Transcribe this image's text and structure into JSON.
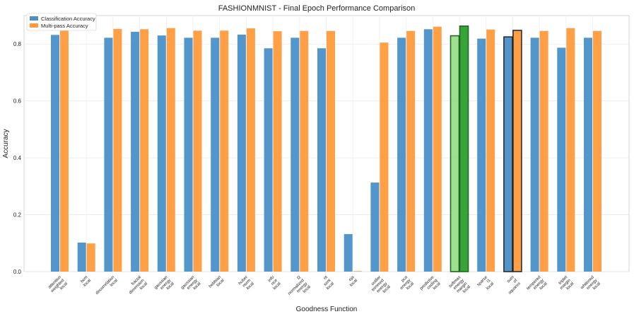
{
  "chart_data": {
    "type": "bar",
    "title": "FASHIONMNIST - Final Epoch Performance Comparison",
    "xlabel": "Goodness Function",
    "ylabel": "Accuracy",
    "ylim": [
      0,
      0.9
    ],
    "yticks": [
      0.0,
      0.2,
      0.4,
      0.6,
      0.8
    ],
    "grid": true,
    "legend_position": "top-left",
    "categories": [
      [
        "attention",
        "weighted",
        "local"
      ],
      [
        "bcm",
        "local"
      ],
      [
        "decorrelation",
        "local"
      ],
      [
        "fractal",
        "dimension",
        "local"
      ],
      [
        "gaussian",
        "energy",
        "local"
      ],
      [
        "gaussian",
        "energy",
        "local"
      ],
      [
        "hebbian",
        "local"
      ],
      [
        "huber",
        "norm",
        "local"
      ],
      [
        "info",
        "nce",
        "local"
      ],
      [
        "l2",
        "normalized",
        "energy",
        "local"
      ],
      [
        "nt",
        "xent",
        "local"
      ],
      [
        "oja",
        "local"
      ],
      [
        "outlier",
        "trimmed",
        "energy",
        "local"
      ],
      [
        "pca",
        "energy",
        "local"
      ],
      [
        "predictive",
        "coding",
        "local"
      ],
      [
        "softmax",
        "energy",
        "margin",
        "local"
      ],
      [
        "sparse",
        "l1",
        "local"
      ],
      [
        "sum",
        "of",
        "squares"
      ],
      [
        "tempered",
        "energy",
        "local"
      ],
      [
        "triplet",
        "margin",
        "local"
      ],
      [
        "whitened",
        "energy",
        "local"
      ]
    ],
    "series": [
      {
        "name": "Classification Accuracy",
        "color": "#4a90c8",
        "values": [
          0.832,
          0.102,
          0.822,
          0.843,
          0.83,
          0.822,
          0.822,
          0.833,
          0.785,
          0.822,
          0.785,
          0.132,
          0.313,
          0.822,
          0.852,
          0.829,
          0.819,
          0.825,
          0.822,
          0.787,
          0.822
        ]
      },
      {
        "name": "Multi-pass Accuracy",
        "color": "#ff9a3c",
        "values": [
          0.847,
          0.099,
          0.853,
          0.852,
          0.856,
          0.847,
          0.847,
          0.855,
          0.845,
          0.846,
          0.846,
          0.002,
          0.805,
          0.846,
          0.861,
          0.863,
          0.851,
          0.848,
          0.846,
          0.856,
          0.846
        ]
      }
    ],
    "highlights": [
      {
        "index": 15,
        "classification_color": "#98df8a",
        "multipass_color": "#2ca02c",
        "edge_color": "#1a5e1a"
      },
      {
        "index": 17,
        "classification_color": "#4a90c8",
        "multipass_color": "#ff9a3c",
        "edge_color": "#222222"
      }
    ]
  }
}
